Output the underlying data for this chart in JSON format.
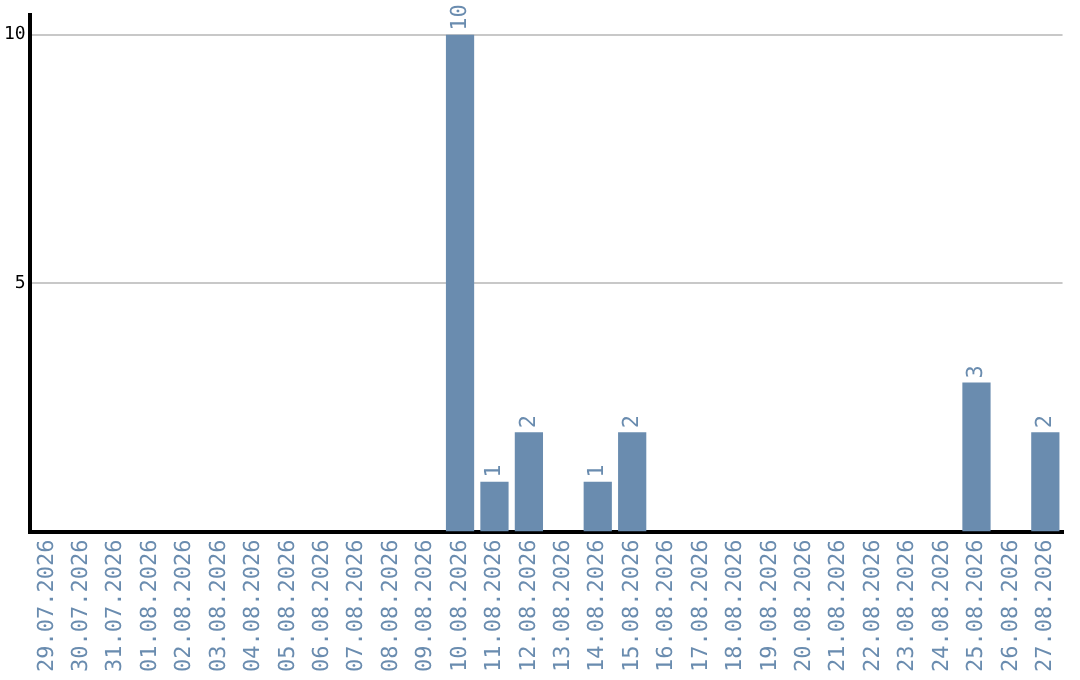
{
  "chart_data": {
    "type": "bar",
    "categories": [
      "29.07.2026",
      "30.07.2026",
      "31.07.2026",
      "01.08.2026",
      "02.08.2026",
      "03.08.2026",
      "04.08.2026",
      "05.08.2026",
      "06.08.2026",
      "07.08.2026",
      "08.08.2026",
      "09.08.2026",
      "10.08.2026",
      "11.08.2026",
      "12.08.2026",
      "13.08.2026",
      "14.08.2026",
      "15.08.2026",
      "16.08.2026",
      "17.08.2026",
      "18.08.2026",
      "19.08.2026",
      "20.08.2026",
      "21.08.2026",
      "22.08.2026",
      "23.08.2026",
      "24.08.2026",
      "25.08.2026",
      "26.08.2026",
      "27.08.2026"
    ],
    "values": [
      0,
      0,
      0,
      0,
      0,
      0,
      0,
      0,
      0,
      0,
      0,
      0,
      10,
      1,
      2,
      0,
      1,
      2,
      0,
      0,
      0,
      0,
      0,
      0,
      0,
      0,
      0,
      3,
      0,
      2
    ],
    "value_labels": [
      null,
      null,
      null,
      null,
      null,
      null,
      null,
      null,
      null,
      null,
      null,
      null,
      "10",
      "1",
      "2",
      null,
      "1",
      "2",
      null,
      null,
      null,
      null,
      null,
      null,
      null,
      null,
      null,
      "3",
      null,
      "2"
    ],
    "color": "#6a8caf",
    "ylim": [
      0,
      10.4
    ],
    "yticks": [
      5,
      10
    ],
    "grid": "y"
  }
}
